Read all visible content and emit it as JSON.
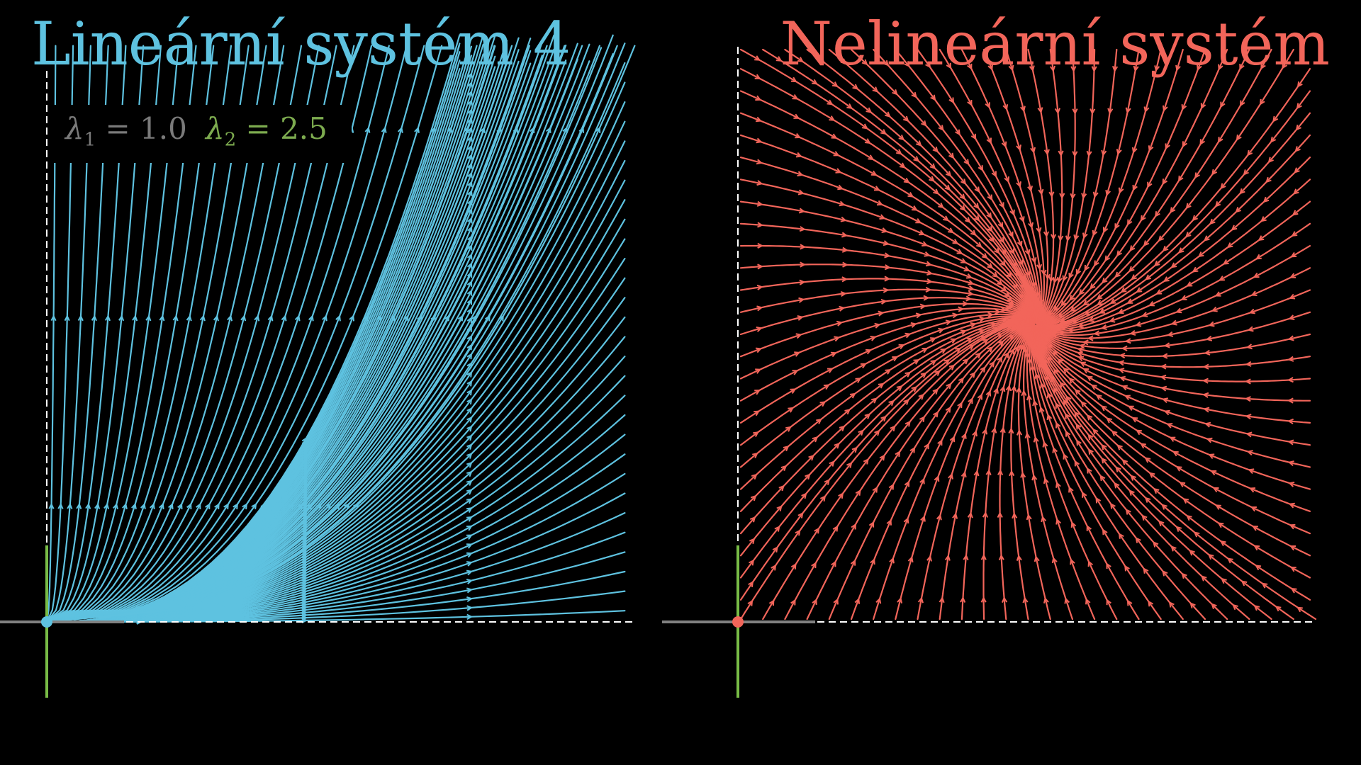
{
  "colors": {
    "linear": "#5ec2e0",
    "nonlinear": "#f2655a",
    "axis_gray": "#808080",
    "axis_green": "#78bb46",
    "eig1_text": "#7a7a7a",
    "eig2_text": "#7dab4f",
    "background": "#000000"
  },
  "panels": {
    "left": {
      "title": "Lineární systém 4",
      "eigenvalues": {
        "lambda1": {
          "symbol": "λ",
          "index": "1",
          "value": "1.0"
        },
        "lambda2": {
          "symbol": "λ",
          "index": "2",
          "value": "2.5"
        }
      }
    },
    "right": {
      "title": "Nelineární systém"
    }
  }
}
